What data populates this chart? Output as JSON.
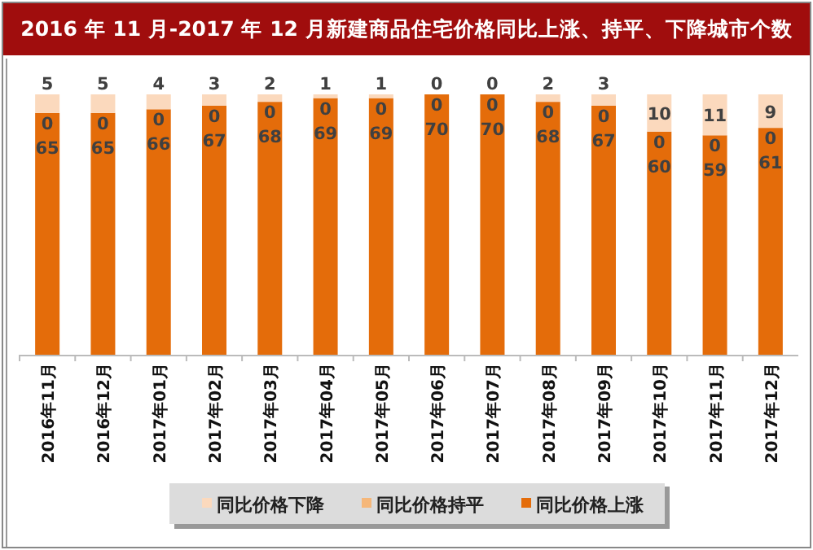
{
  "chart_data": {
    "type": "bar",
    "title": "2016 年 11 月-2017 年 12 月新建商品住宅价格同比上涨、持平、下降城市个数",
    "categories": [
      "2016年11月",
      "2016年12月",
      "2017年01月",
      "2017年02月",
      "2017年03月",
      "2017年04月",
      "2017年05月",
      "2017年06月",
      "2017年07月",
      "2017年08月",
      "2017年09月",
      "2017年10月",
      "2017年11月",
      "2017年12月"
    ],
    "series": [
      {
        "name": "同比价格上涨",
        "color": "#e46c0a",
        "values": [
          65,
          65,
          66,
          67,
          68,
          69,
          69,
          70,
          70,
          68,
          67,
          60,
          59,
          61
        ]
      },
      {
        "name": "同比价格持平",
        "color": "#f5b77a",
        "values": [
          0,
          0,
          0,
          0,
          0,
          0,
          0,
          0,
          0,
          0,
          0,
          0,
          0,
          0
        ]
      },
      {
        "name": "同比价格下降",
        "color": "#fbd9bd",
        "values": [
          5,
          5,
          4,
          3,
          2,
          1,
          1,
          0,
          0,
          2,
          3,
          10,
          11,
          9
        ]
      }
    ],
    "stacked": true,
    "data_labels": true,
    "legend": "bottom"
  }
}
